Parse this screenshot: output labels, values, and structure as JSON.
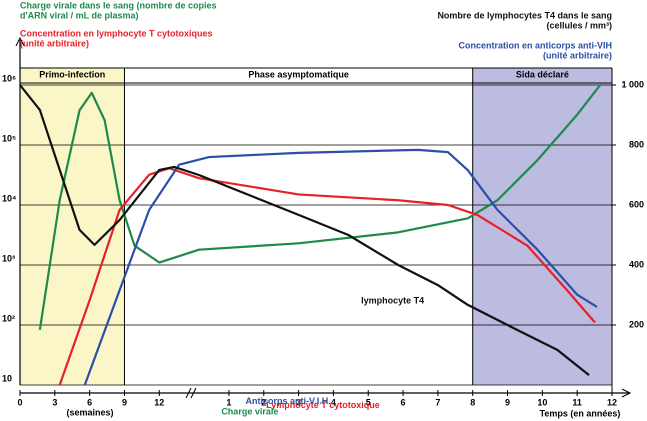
{
  "chart_data": {
    "type": "line",
    "header": {
      "viral_load": [
        "Charge virale dans le sang (nombre de copies",
        "d'ARN viral / mL de plasma)"
      ],
      "cytotoxic": [
        "Concentration en lymphocyte T cytotoxiques",
        "(unité arbitraire)"
      ],
      "t4": [
        "Nombre de lymphocytes T4 dans le sang",
        "(cellules / mm³)"
      ],
      "antibodies": [
        "Concentration en anticorps anti-VIH",
        "(unité arbitraire)"
      ]
    },
    "x_label_weeks": "(semaines)",
    "x_label_years": "Temps (en années)",
    "regions": [
      {
        "label": "Primo-infection",
        "xlim": [
          0,
          3
        ],
        "color": "#faf6c8"
      },
      {
        "label": "Phase asymptomatique",
        "xlim": [
          3,
          13
        ],
        "color": null
      },
      {
        "label": "Sida déclaré",
        "xlim": [
          13,
          17
        ],
        "color": "#bcbbe0"
      }
    ],
    "xlim": [
      0,
      17
    ],
    "xticks": [
      0,
      {
        "value": 1,
        "label": "3"
      },
      {
        "value": 2,
        "label": "6"
      },
      {
        "value": 3,
        "label": "9"
      },
      {
        "value": 4,
        "label": "12"
      },
      {
        "value": 6,
        "label": "1"
      },
      {
        "value": 7,
        "label": "2"
      },
      {
        "value": 8,
        "label": "3"
      },
      {
        "value": 9,
        "label": "4"
      },
      {
        "value": 10,
        "label": "5"
      },
      {
        "value": 11,
        "label": "6"
      },
      {
        "value": 12,
        "label": "7"
      },
      {
        "value": 13,
        "label": "8"
      },
      {
        "value": 14,
        "label": "9"
      },
      {
        "value": 15,
        "label": "10"
      },
      {
        "value": 16,
        "label": "11"
      },
      {
        "value": 17,
        "label": "12"
      }
    ],
    "log_y": true,
    "ylim": [
      10,
      1000000
    ],
    "yticks": [
      10,
      {
        "value": 100,
        "label": "10²"
      },
      {
        "value": 1000,
        "label": "10³"
      },
      {
        "value": 10000,
        "label": "10⁴"
      },
      {
        "value": 100000,
        "label": "10⁵"
      },
      {
        "value": 1000000,
        "label": "10⁶"
      }
    ],
    "y2lim": [
      0,
      1000
    ],
    "y2ticks": [
      200,
      400,
      600,
      800,
      {
        "value": 1000,
        "label": "1 000"
      }
    ],
    "grid": true,
    "series": [
      {
        "name": "Charge virale",
        "color": "#1e8a4a",
        "x": [
          0.57,
          1.14,
          1.71,
          2.06,
          2.43,
          2.86,
          3.29,
          4.0,
          5.14,
          8,
          10.86,
          12.86,
          13.71,
          14.86,
          16,
          16.66
        ],
        "values": [
          83,
          12000,
          380000,
          740000,
          260000,
          12000,
          2100,
          1100,
          1800,
          2300,
          3500,
          6000,
          12000,
          56000,
          320000,
          1000000
        ],
        "label_at": [
          6.6,
          3.5
        ]
      },
      {
        "name": "Lymphocyte T cytotoxique",
        "color": "#e8202a",
        "x": [
          1.14,
          2,
          2.86,
          3.71,
          4.29,
          5.14,
          8,
          10.86,
          12.29,
          13.14,
          14.57,
          15.71,
          16.51
        ],
        "values": [
          10,
          260,
          8300,
          32000,
          41000,
          28000,
          15000,
          12000,
          10000,
          6800,
          2100,
          380,
          110
        ],
        "label_at": [
          8.7,
          4.55
        ]
      },
      {
        "name": "Anticorps anti-V.I.H.",
        "color": "#2b4fa6",
        "x": [
          1.86,
          2.86,
          3.71,
          4.57,
          5.43,
          8,
          11.43,
          12.29,
          12.86,
          13.71,
          14.86,
          16,
          16.57
        ],
        "values": [
          10,
          380,
          8300,
          47000,
          63000,
          74000,
          83000,
          76000,
          38000,
          8300,
          1800,
          320,
          200
        ],
        "label_at": [
          7.7,
          5.25
        ]
      },
      {
        "name": "lymphocyte T4",
        "color": "#111111",
        "axis": "y2",
        "x": [
          0,
          0.57,
          1.14,
          1.71,
          2.14,
          2.86,
          4,
          4.43,
          5.14,
          8,
          9.43,
          10.86,
          12,
          12.86,
          14.29,
          15.43,
          16.34
        ],
        "values": [
          1000,
          917,
          717,
          517,
          467,
          550,
          717,
          727,
          700,
          567,
          500,
          400,
          333,
          267,
          183,
          117,
          33
        ],
        "label_at": [
          10.7,
          280
        ]
      }
    ]
  }
}
